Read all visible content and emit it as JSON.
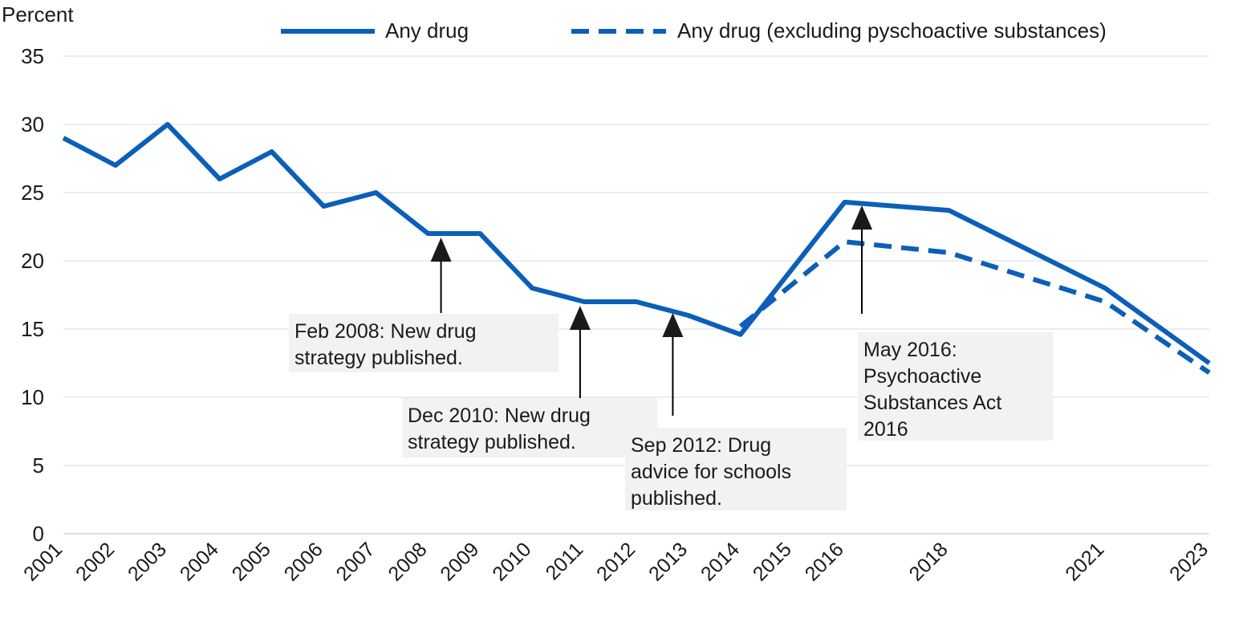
{
  "chart_data": {
    "type": "line",
    "ylabel": "Percent",
    "ylim": [
      0,
      35
    ],
    "yticks": [
      0,
      5,
      10,
      15,
      20,
      25,
      30,
      35
    ],
    "grid": true,
    "legend_position": "top",
    "categories": [
      "2001",
      "2002",
      "2003",
      "2004",
      "2005",
      "2006",
      "2007",
      "2008",
      "2009",
      "2010",
      "2011",
      "2012",
      "2013",
      "2014",
      "2015",
      "2016",
      "2018",
      "2021",
      "2023"
    ],
    "series": [
      {
        "name": "Any drug",
        "style": "solid",
        "color": "#0b5fb8",
        "points": [
          {
            "x": 2001,
            "y": 29
          },
          {
            "x": 2002,
            "y": 27
          },
          {
            "x": 2003,
            "y": 30
          },
          {
            "x": 2004,
            "y": 26
          },
          {
            "x": 2005,
            "y": 28
          },
          {
            "x": 2006,
            "y": 24
          },
          {
            "x": 2007,
            "y": 25
          },
          {
            "x": 2008,
            "y": 22
          },
          {
            "x": 2009,
            "y": 22
          },
          {
            "x": 2010,
            "y": 18
          },
          {
            "x": 2011,
            "y": 17
          },
          {
            "x": 2012,
            "y": 17
          },
          {
            "x": 2013,
            "y": 16
          },
          {
            "x": 2014,
            "y": 14.6
          },
          {
            "x": 2016,
            "y": 24.3
          },
          {
            "x": 2018,
            "y": 23.7
          },
          {
            "x": 2021,
            "y": 18
          },
          {
            "x": 2023,
            "y": 12.5
          }
        ]
      },
      {
        "name": "Any drug (excluding pyschoactive substances)",
        "style": "dashed",
        "color": "#0b5fb8",
        "points": [
          {
            "x": 2014,
            "y": 15.2
          },
          {
            "x": 2016,
            "y": 21.4
          },
          {
            "x": 2018,
            "y": 20.6
          },
          {
            "x": 2021,
            "y": 17
          },
          {
            "x": 2023,
            "y": 11.8
          }
        ]
      }
    ],
    "annotations": [
      {
        "text": "Feb 2008: New drug\nstrategy published.",
        "x": 2008.25
      },
      {
        "text": "Dec 2010: New drug\nstrategy published.",
        "x": 2010.92
      },
      {
        "text": "Sep 2012: Drug\nadvice for schools\npublished.",
        "x": 2012.7
      },
      {
        "text": "May 2016:\nPsychoactive\nSubstances Act\n2016",
        "x": 2016.33
      }
    ]
  }
}
